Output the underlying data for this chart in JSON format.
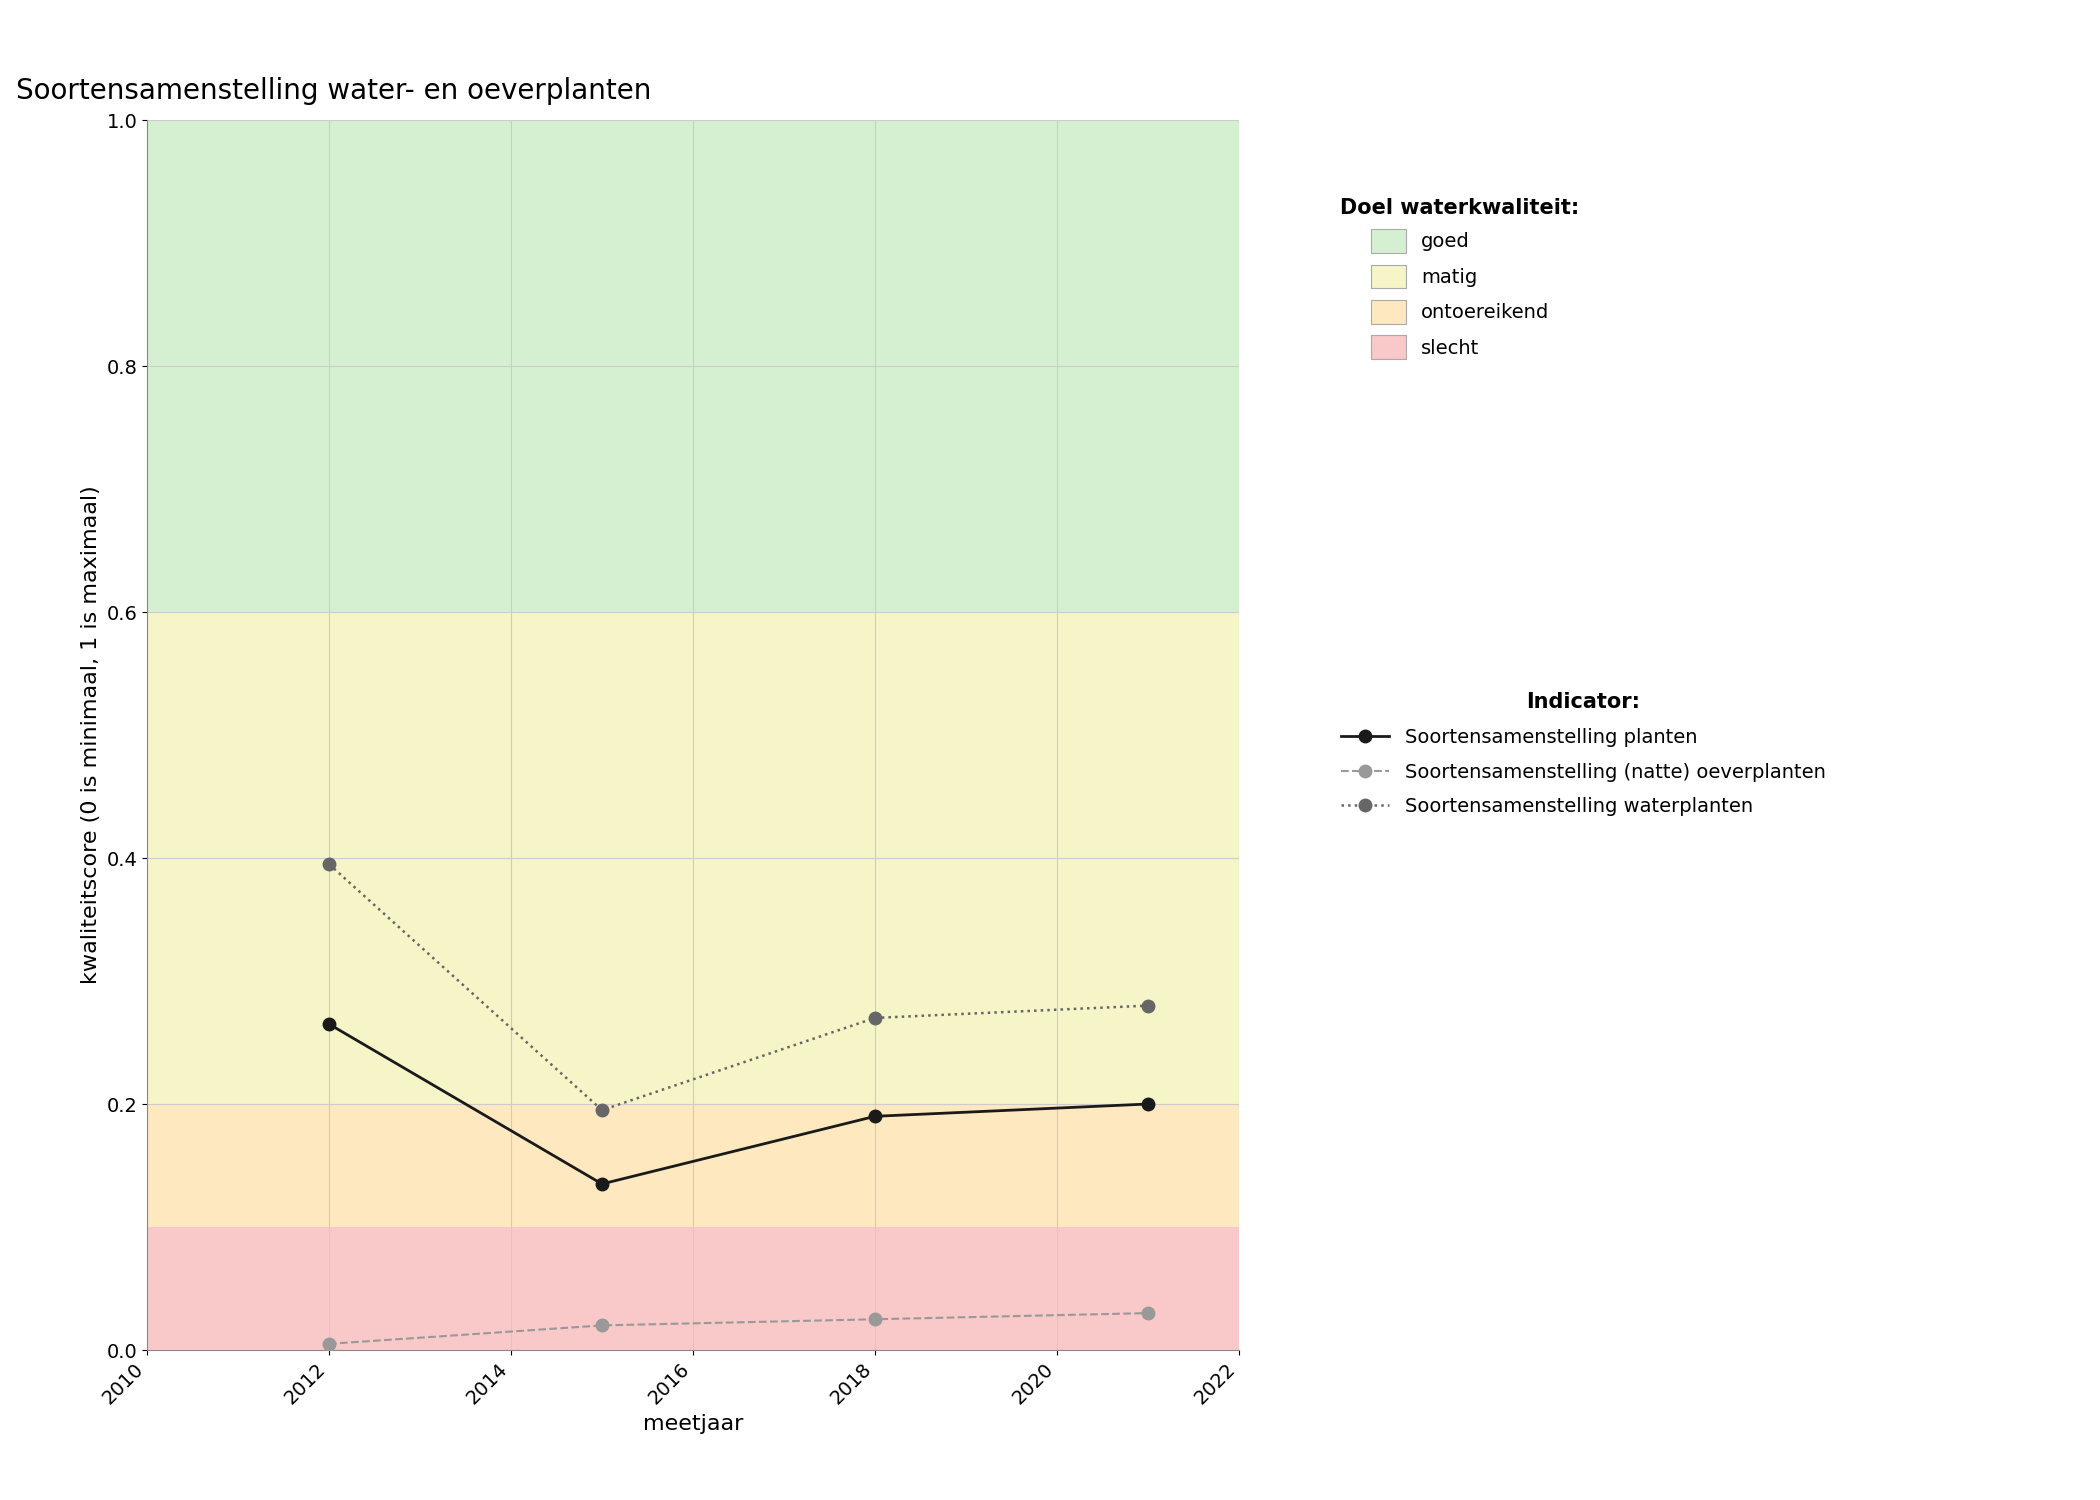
{
  "title": "Soortensamenstelling water- en oeverplanten",
  "xlabel": "meetjaar",
  "ylabel": "kwaliteitscore (0 is minimaal, 1 is maximaal)",
  "xlim": [
    2010,
    2022
  ],
  "ylim": [
    0.0,
    1.0
  ],
  "xticks": [
    2010,
    2012,
    2014,
    2016,
    2018,
    2020,
    2022
  ],
  "yticks": [
    0.0,
    0.2,
    0.4,
    0.6,
    0.8,
    1.0
  ],
  "bg_colors": [
    {
      "name": "goed",
      "color": "#d5f0d0",
      "ymin": 0.6,
      "ymax": 1.0
    },
    {
      "name": "matig",
      "color": "#f5f5c8",
      "ymin": 0.2,
      "ymax": 0.6
    },
    {
      "name": "ontoereikend",
      "color": "#fde8c0",
      "ymin": 0.1,
      "ymax": 0.2
    },
    {
      "name": "slecht",
      "color": "#f9c8c8",
      "ymin": 0.0,
      "ymax": 0.1
    }
  ],
  "series": [
    {
      "name": "planten",
      "x": [
        2012,
        2015,
        2018,
        2021
      ],
      "y": [
        0.265,
        0.135,
        0.19,
        0.2
      ],
      "color": "#1a1a1a",
      "linestyle": "-",
      "marker": "o",
      "markersize": 9,
      "linewidth": 2.0,
      "label": "Soortensamenstelling planten"
    },
    {
      "name": "oeverplanten",
      "x": [
        2012,
        2015,
        2018,
        2021
      ],
      "y": [
        0.005,
        0.02,
        0.025,
        0.03
      ],
      "color": "#999999",
      "linestyle": "--",
      "marker": "o",
      "markersize": 9,
      "linewidth": 1.5,
      "label": "Soortensamenstelling (natte) oeverplanten"
    },
    {
      "name": "waterplanten",
      "x": [
        2012,
        2015,
        2018,
        2021
      ],
      "y": [
        0.395,
        0.195,
        0.27,
        0.28
      ],
      "color": "#666666",
      "linestyle": ":",
      "marker": "o",
      "markersize": 9,
      "linewidth": 1.8,
      "label": "Soortensamenstelling waterplanten"
    }
  ],
  "legend_quality_title": "Doel waterkwaliteit:",
  "legend_quality_items": [
    {
      "label": "goed",
      "color": "#d5f0d0"
    },
    {
      "label": "matig",
      "color": "#f5f5c8"
    },
    {
      "label": "ontoereikend",
      "color": "#fde8c0"
    },
    {
      "label": "slecht",
      "color": "#f9c8c8"
    }
  ],
  "legend_indicator_title": "Indicator:",
  "background_color": "#ffffff",
  "grid_color": "#cccccc",
  "title_fontsize": 20,
  "label_fontsize": 16,
  "tick_fontsize": 14,
  "legend_fontsize": 14,
  "legend_title_fontsize": 15
}
